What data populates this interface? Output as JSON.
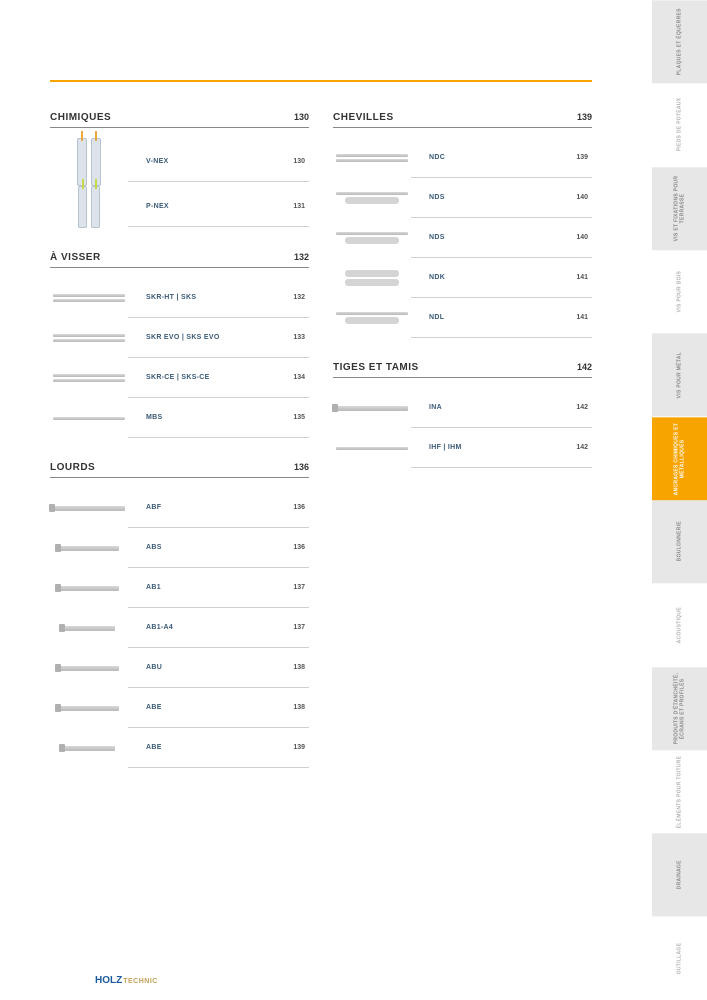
{
  "colors": {
    "accent": "#f7a400",
    "brand_blue": "#1a5a9e",
    "brand_gold": "#c4a25a",
    "label_blue": "#3a5a78",
    "rule_gray": "#d0d0d0"
  },
  "footer": {
    "brand1": "HOLZ",
    "brand2": "TECHNIC"
  },
  "side_tabs": [
    {
      "label": "PLAQUES ET ÉQUERRES",
      "state": "wide-bg"
    },
    {
      "label": "PIEDS DE POTEAUX",
      "state": ""
    },
    {
      "label": "VIS ET FIXATIONS POUR TERRASSE",
      "state": "wide-bg"
    },
    {
      "label": "VIS POUR BOIS",
      "state": ""
    },
    {
      "label": "VIS POUR MÉTAL",
      "state": "wide-bg"
    },
    {
      "label": "ANCRAGES CHIMIQUES ET MÉTALLIQUES",
      "state": "active"
    },
    {
      "label": "BOULONNERIE",
      "state": "wide-bg"
    },
    {
      "label": "ACOUSTIQUE",
      "state": ""
    },
    {
      "label": "PRODUITS D'ÉTANCHÉITÉ, ÉCRANS ET PROFILÉS",
      "state": "wide-bg"
    },
    {
      "label": "ÉLÉMENTS POUR TOITURE",
      "state": ""
    },
    {
      "label": "DRAINAGE",
      "state": "wide-bg"
    },
    {
      "label": "OUTILLAGE",
      "state": ""
    }
  ],
  "left_column": [
    {
      "title": "CHIMIQUES",
      "page": "130",
      "items": [
        {
          "label": "V-NEX",
          "page": "130",
          "img": "cartridges-2"
        },
        {
          "label": "P-NEX",
          "page": "131",
          "img": "cartridges-2-alt"
        }
      ]
    },
    {
      "title": "À VISSER",
      "page": "132",
      "items": [
        {
          "label": "SKR-HT | SKS",
          "page": "132",
          "img": "bars-2"
        },
        {
          "label": "SKR EVO | SKS EVO",
          "page": "133",
          "img": "bars-2"
        },
        {
          "label": "SKR-CE | SKS-CE",
          "page": "134",
          "img": "bars-2"
        },
        {
          "label": "MBS",
          "page": "135",
          "img": "bar-1"
        }
      ]
    },
    {
      "title": "LOURDS",
      "page": "136",
      "items": [
        {
          "label": "ABF",
          "page": "136",
          "img": "anchor"
        },
        {
          "label": "ABS",
          "page": "136",
          "img": "anchor-short"
        },
        {
          "label": "AB1",
          "page": "137",
          "img": "anchor-short"
        },
        {
          "label": "AB1-A4",
          "page": "137",
          "img": "anchor-shorter"
        },
        {
          "label": "ABU",
          "page": "138",
          "img": "anchor-short"
        },
        {
          "label": "ABE",
          "page": "138",
          "img": "anchor-short"
        },
        {
          "label": "ABE",
          "page": "139",
          "img": "anchor-shorter"
        }
      ]
    }
  ],
  "right_column": [
    {
      "title": "CHEVILLES",
      "page": "139",
      "items": [
        {
          "label": "NDC",
          "page": "139",
          "img": "bars-2"
        },
        {
          "label": "NDS",
          "page": "140",
          "img": "bar-dowel"
        },
        {
          "label": "NDS",
          "page": "140",
          "img": "bar-dowel"
        },
        {
          "label": "NDK",
          "page": "141",
          "img": "dowel-short"
        },
        {
          "label": "NDL",
          "page": "141",
          "img": "bar-dowel"
        }
      ]
    },
    {
      "title": "TIGES ET TAMIS",
      "page": "142",
      "items": [
        {
          "label": "INA",
          "page": "142",
          "img": "bar-head"
        },
        {
          "label": "IHF | IHM",
          "page": "142",
          "img": "bar-1"
        }
      ]
    }
  ]
}
